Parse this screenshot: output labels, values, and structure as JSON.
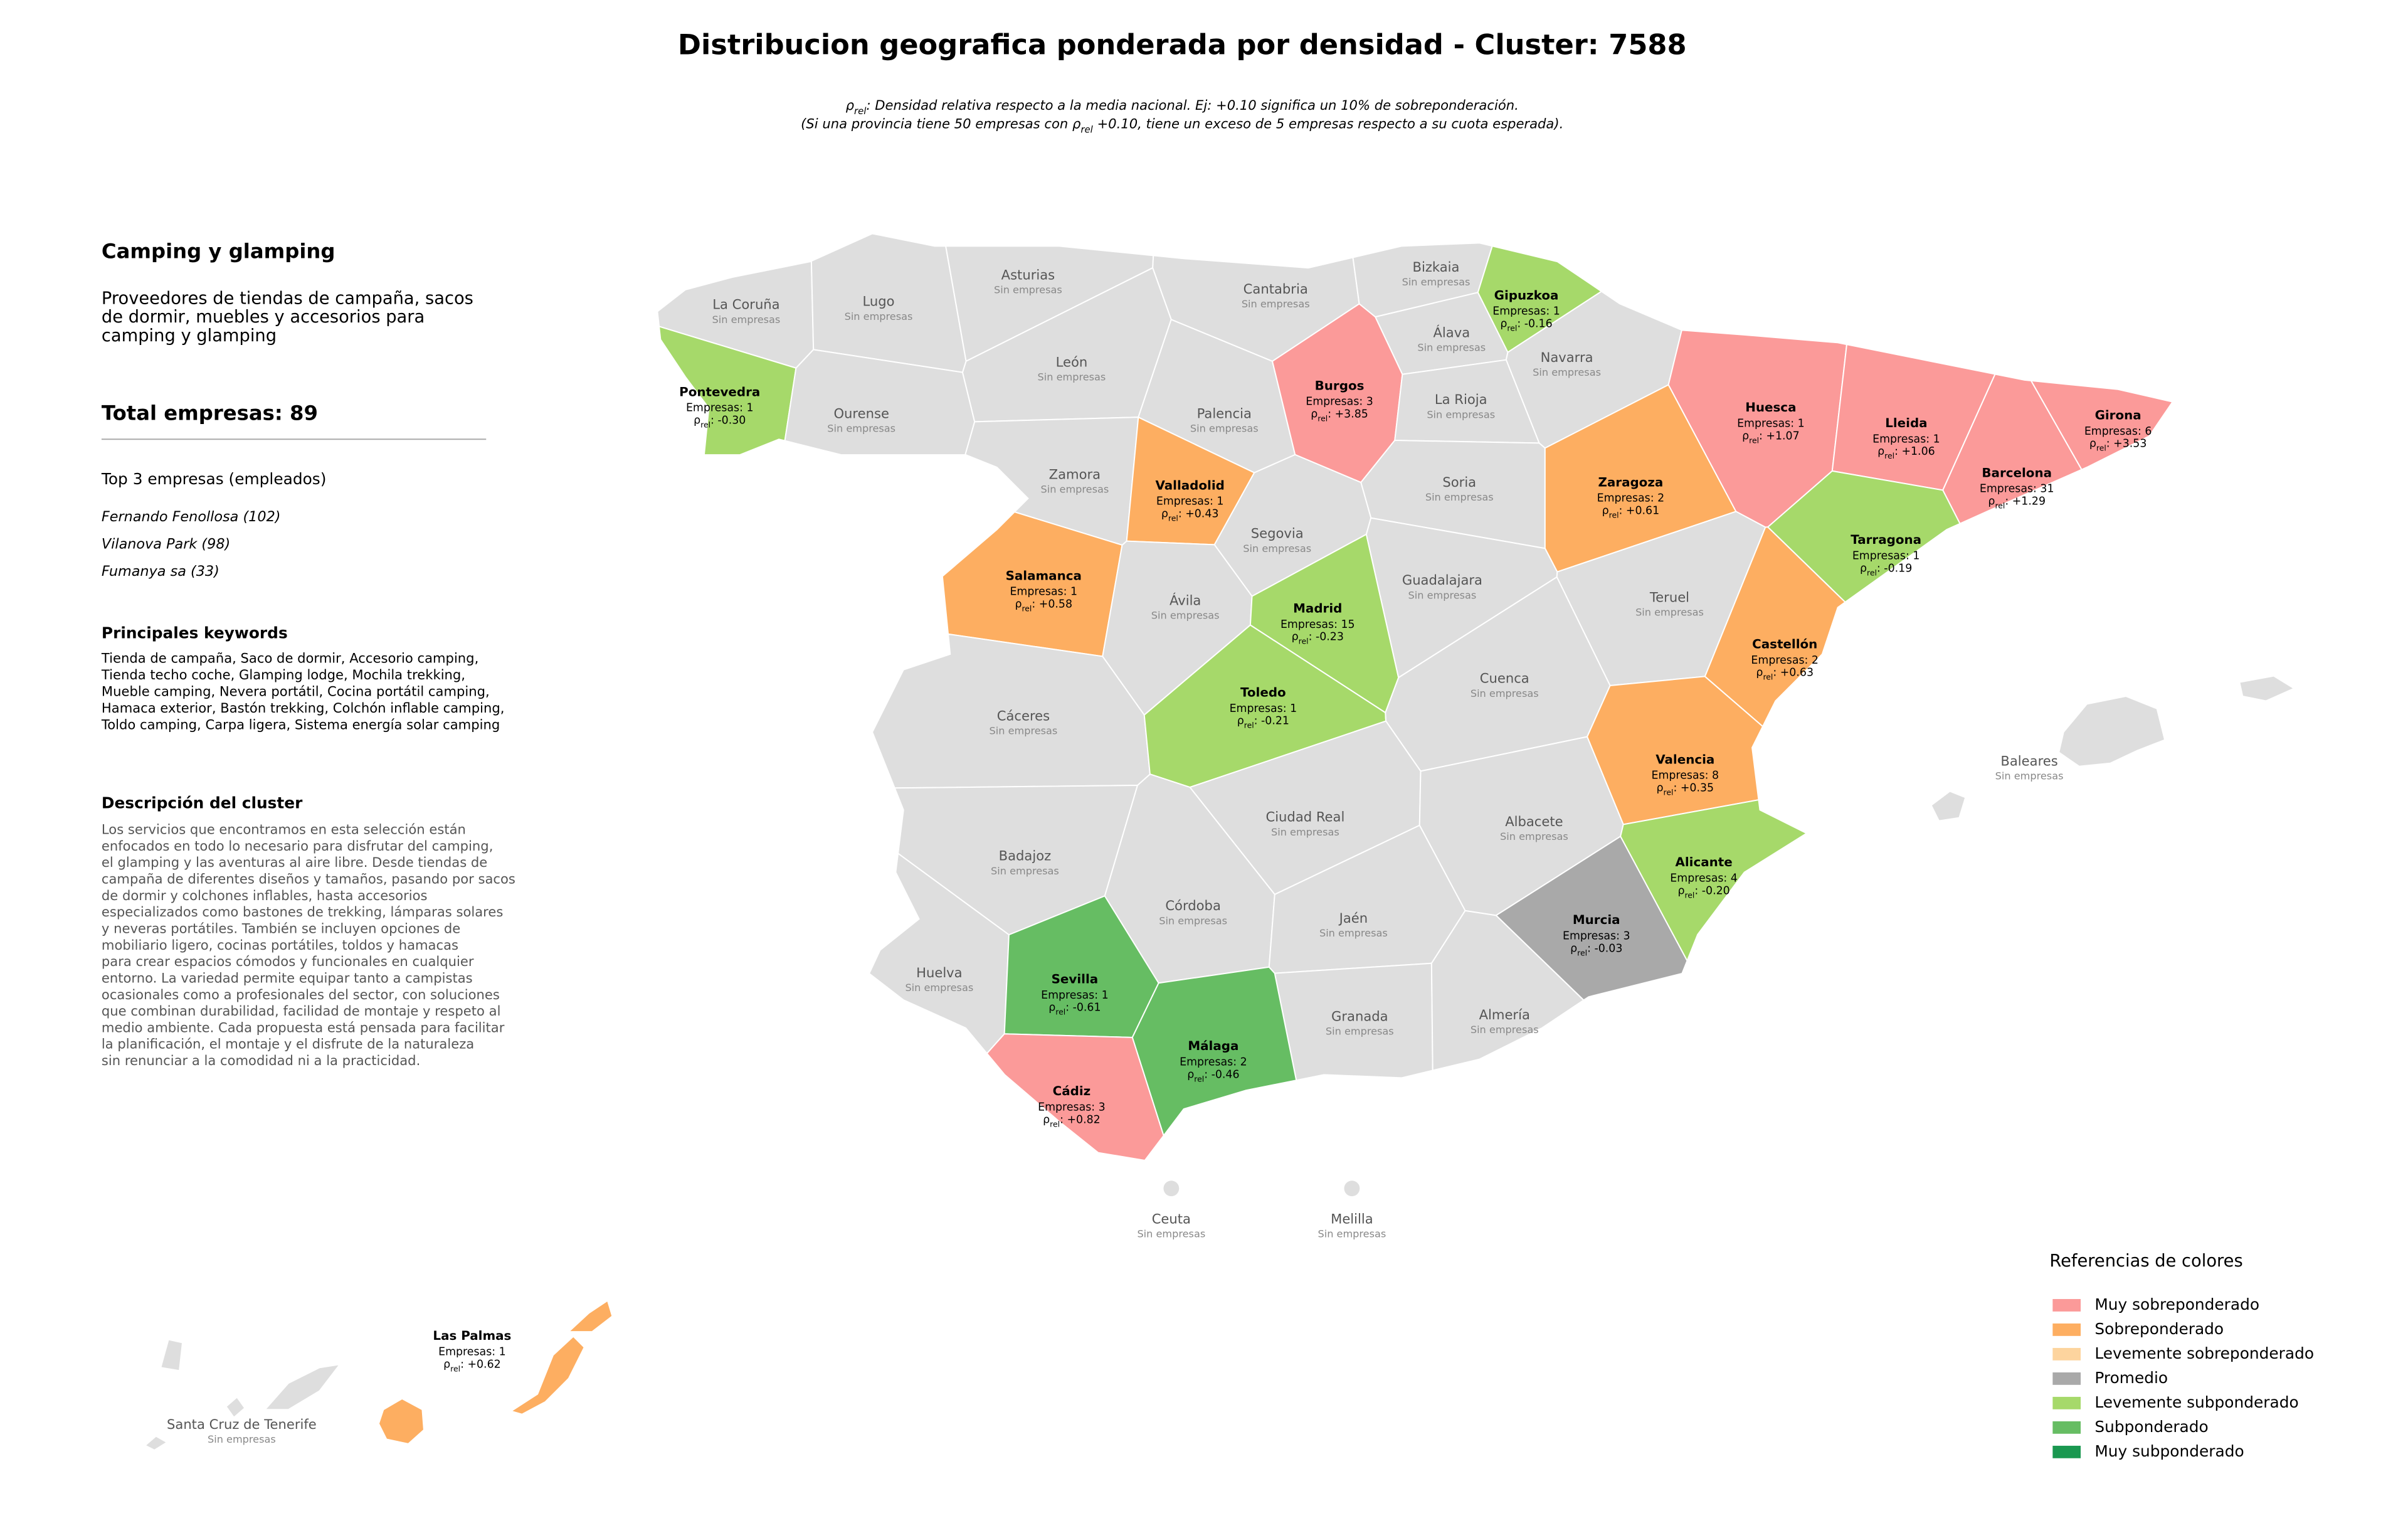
{
  "title": "Distribucion geografica ponderada por densidad - Cluster: 7588",
  "subtitle": {
    "l1_symbol": "ρ",
    "l1_sub": "rel",
    "l1_text": ": Densidad relativa respecto a la media nacional. Ej: +0.10 significa un 10% de sobreponderación.",
    "l2_start": "(Si una provincia tiene 50 empresas con ",
    "l2_symbol": "ρ",
    "l2_sub": "rel",
    "l2_end": " +0.10, tiene un exceso de 5 empresas respecto a su cuota esperada)."
  },
  "sidebar": {
    "heading": "Camping y glamping",
    "summary": [
      "Proveedores de tiendas de campaña, sacos",
      "de dormir, muebles y accesorios para",
      "camping y glamping"
    ],
    "total": "Total empresas: 89",
    "top_title": "Top 3 empresas (empleados)",
    "top": [
      "Fernando Fenollosa (102)",
      "Vilanova Park (98)",
      "Fumanya sa (33)"
    ],
    "keywords_title": "Principales keywords",
    "keywords": [
      "Tienda de campaña, Saco de dormir, Accesorio camping,",
      "Tienda techo coche, Glamping lodge, Mochila trekking,",
      "Mueble camping, Nevera portátil, Cocina portátil camping,",
      "Hamaca exterior, Bastón trekking, Colchón inflable camping,",
      "Toldo camping, Carpa ligera, Sistema energía solar camping"
    ],
    "description_title": "Descripción del cluster",
    "description": [
      "Los servicios que encontramos en esta selección están",
      "enfocados en todo lo necesario para disfrutar del camping,",
      "el glamping y las aventuras al aire libre. Desde tiendas de",
      "campaña de diferentes diseños y tamaños, pasando por sacos",
      "de dormir y colchones inflables, hasta accesorios",
      "especializados como bastones de trekking, lámparas solares",
      "y neveras portátiles. También se incluyen opciones de",
      "mobiliario ligero, cocinas portátiles, toldos y hamacas",
      "para crear espacios cómodos y funcionales en cualquier",
      "entorno. La variedad permite equipar tanto a campistas",
      "ocasionales como a profesionales del sector, con soluciones",
      "que combinan durabilidad, facilidad de montaje y respeto al",
      "medio ambiente. Cada propuesta está pensada para facilitar",
      "la planificación, el montaje y el disfrute de la naturaleza",
      "sin renunciar a la comodidad ni a la practicidad."
    ]
  },
  "map": {
    "empty_label": "Sin empresas",
    "empty_color": "#dedede",
    "rho_symbol": "ρ",
    "rho_sub": "rel",
    "provinces": [
      {
        "name": "La Coruña"
      },
      {
        "name": "Lugo"
      },
      {
        "name": "Asturias"
      },
      {
        "name": "Cantabria"
      },
      {
        "name": "Bizkaia"
      },
      {
        "name": "Gipuzkoa",
        "category": 4,
        "count": "Empresas: 1",
        "rho": ": -0.16"
      },
      {
        "name": "Álava"
      },
      {
        "name": "Navarra"
      },
      {
        "name": "Pontevedra",
        "category": 4,
        "count": "Empresas: 1",
        "rho": ": -0.30"
      },
      {
        "name": "Ourense"
      },
      {
        "name": "León"
      },
      {
        "name": "Palencia"
      },
      {
        "name": "Burgos",
        "category": 0,
        "count": "Empresas: 3",
        "rho": ": +3.85"
      },
      {
        "name": "La Rioja"
      },
      {
        "name": "Huesca",
        "category": 0,
        "count": "Empresas: 1",
        "rho": ": +1.07"
      },
      {
        "name": "Lleida",
        "category": 0,
        "count": "Empresas: 1",
        "rho": ": +1.06"
      },
      {
        "name": "Girona",
        "category": 0,
        "count": "Empresas: 6",
        "rho": ": +3.53"
      },
      {
        "name": "Barcelona",
        "category": 0,
        "count": "Empresas: 31",
        "rho": ": +1.29"
      },
      {
        "name": "Zamora"
      },
      {
        "name": "Valladolid",
        "category": 1,
        "count": "Empresas: 1",
        "rho": ": +0.43"
      },
      {
        "name": "Soria"
      },
      {
        "name": "Zaragoza",
        "category": 1,
        "count": "Empresas: 2",
        "rho": ": +0.61"
      },
      {
        "name": "Segovia"
      },
      {
        "name": "Salamanca",
        "category": 1,
        "count": "Empresas: 1",
        "rho": ": +0.58"
      },
      {
        "name": "Ávila"
      },
      {
        "name": "Madrid",
        "category": 4,
        "count": "Empresas: 15",
        "rho": ": -0.23"
      },
      {
        "name": "Guadalajara"
      },
      {
        "name": "Teruel"
      },
      {
        "name": "Tarragona",
        "category": 4,
        "count": "Empresas: 1",
        "rho": ": -0.19"
      },
      {
        "name": "Castellón",
        "category": 1,
        "count": "Empresas: 2",
        "rho": ": +0.63"
      },
      {
        "name": "Cáceres"
      },
      {
        "name": "Toledo",
        "category": 4,
        "count": "Empresas: 1",
        "rho": ": -0.21"
      },
      {
        "name": "Cuenca"
      },
      {
        "name": "Valencia",
        "category": 1,
        "count": "Empresas: 8",
        "rho": ": +0.35"
      },
      {
        "name": "Badajoz"
      },
      {
        "name": "Ciudad Real"
      },
      {
        "name": "Albacete"
      },
      {
        "name": "Alicante",
        "category": 4,
        "count": "Empresas: 4",
        "rho": ": -0.20"
      },
      {
        "name": "Córdoba"
      },
      {
        "name": "Jaén"
      },
      {
        "name": "Murcia",
        "category": 3,
        "count": "Empresas: 3",
        "rho": ": -0.03"
      },
      {
        "name": "Huelva"
      },
      {
        "name": "Sevilla",
        "category": 5,
        "count": "Empresas: 1",
        "rho": ": -0.61"
      },
      {
        "name": "Granada"
      },
      {
        "name": "Almería"
      },
      {
        "name": "Málaga",
        "category": 5,
        "count": "Empresas: 2",
        "rho": ": -0.46"
      },
      {
        "name": "Cádiz",
        "category": 0,
        "count": "Empresas: 3",
        "rho": ": +0.82"
      },
      {
        "name": "Baleares"
      },
      {
        "name": "Ceuta"
      },
      {
        "name": "Melilla"
      },
      {
        "name": "Las Palmas",
        "category": 1,
        "count": "Empresas: 1",
        "rho": ": +0.62"
      },
      {
        "name": "Santa Cruz de Tenerife"
      }
    ]
  },
  "legend": {
    "title": "Referencias de colores",
    "items": [
      {
        "label": "Muy sobreponderado",
        "color": "#fb9a99"
      },
      {
        "label": "Sobreponderado",
        "color": "#fdae61"
      },
      {
        "label": "Levemente sobreponderado",
        "color": "#fdd49e"
      },
      {
        "label": "Promedio",
        "color": "#a9a9a9"
      },
      {
        "label": "Levemente subponderado",
        "color": "#a6d96a"
      },
      {
        "label": "Subponderado",
        "color": "#66bd63"
      },
      {
        "label": "Muy subponderado",
        "color": "#1a9850"
      }
    ]
  }
}
